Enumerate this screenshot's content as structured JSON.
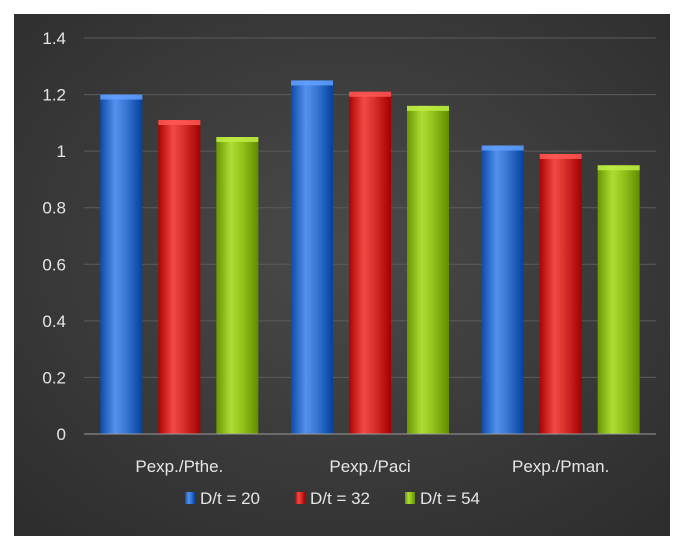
{
  "chart_data": {
    "type": "bar",
    "title": "",
    "xlabel": "",
    "ylabel": "",
    "categories": [
      "Pexp./Pthe.",
      "Pexp./Paci",
      "Pexp./Pman."
    ],
    "series": [
      {
        "name": "D/t = 20",
        "color": "#3a78d6",
        "values": [
          1.2,
          1.25,
          1.02
        ]
      },
      {
        "name": "D/t = 32",
        "color": "#d9302b",
        "values": [
          1.11,
          1.21,
          0.99
        ]
      },
      {
        "name": "D/t = 54",
        "color": "#96c41d",
        "values": [
          1.05,
          1.16,
          0.95
        ]
      }
    ],
    "ylim": [
      0,
      1.4
    ],
    "yticks": [
      "0",
      "0.2",
      "0.4",
      "0.6",
      "0.8",
      "1",
      "1.2",
      "1.4"
    ],
    "grid": true,
    "legend_position": "bottom",
    "background": "#3f3f3f"
  }
}
